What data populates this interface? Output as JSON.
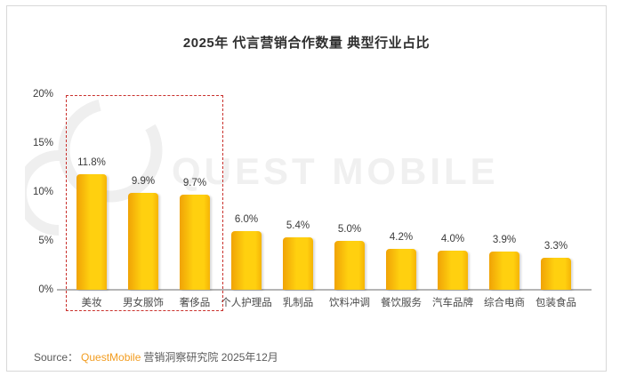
{
  "page": {
    "title": "2025年 代言营销合作数量 典型行业占比"
  },
  "watermark": {
    "text": "QUEST MOBILE"
  },
  "source": {
    "prefix": "Source：",
    "brand": "QuestMobile",
    "suffix": "营销洞察研究院 2025年12月"
  },
  "chart_data": {
    "type": "bar",
    "title": "2025年 代言营销合作数量 典型行业占比",
    "categories": [
      "美妆",
      "男女服饰",
      "奢侈品",
      "个人护理品",
      "乳制品",
      "饮料冲调",
      "餐饮服务",
      "汽车品牌",
      "综合电商",
      "包装食品"
    ],
    "values": [
      11.8,
      9.9,
      9.7,
      6.0,
      5.4,
      5.0,
      4.2,
      4.0,
      3.9,
      3.3
    ],
    "value_labels": [
      "11.8%",
      "9.9%",
      "9.7%",
      "6.0%",
      "5.4%",
      "5.0%",
      "4.2%",
      "4.0%",
      "3.9%",
      "3.3%"
    ],
    "xlabel": "",
    "ylabel": "",
    "ylim": [
      0,
      20
    ],
    "yticks": [
      "0%",
      "5%",
      "10%",
      "15%",
      "20%"
    ],
    "grid": false,
    "legend_position": "none",
    "bar_gradient": [
      "#f0a306",
      "#ffd00f",
      "#f5b406"
    ],
    "axis_color": "#b5b5b5",
    "highlight_box": {
      "categories": [
        "美妆",
        "男女服饰",
        "奢侈品"
      ],
      "border_color": "#c9302c",
      "border_style": "dashed"
    }
  }
}
